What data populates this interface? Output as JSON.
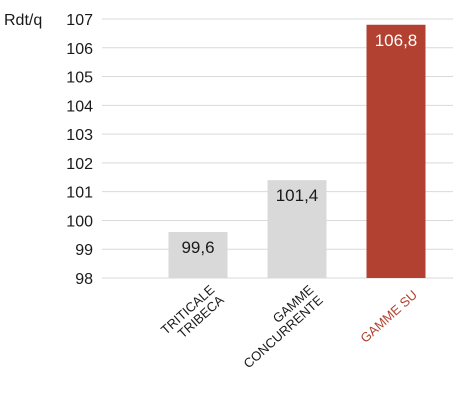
{
  "chart_data": {
    "type": "bar",
    "ylabel": "Rdt/q",
    "ylim": [
      98,
      107
    ],
    "yticks": [
      98,
      99,
      100,
      101,
      102,
      103,
      104,
      105,
      106,
      107
    ],
    "grid": true,
    "categories": [
      [
        "TRITICALE",
        "TRIBECA"
      ],
      [
        "GAMME",
        "CONCURRENTE"
      ],
      [
        "GAMME SU"
      ]
    ],
    "values": [
      99.6,
      101.4,
      106.8
    ],
    "data_labels": [
      "99,6",
      "101,4",
      "106,8"
    ],
    "colors": {
      "bars": [
        "#d9d9d9",
        "#d9d9d9",
        "#b34132"
      ],
      "category_labels": [
        "#1a1a1a",
        "#1a1a1a",
        "#b34132"
      ],
      "data_label_text": [
        "#1a1a1a",
        "#1a1a1a",
        "#ffffff"
      ],
      "grid": "#d9d9d9"
    }
  }
}
